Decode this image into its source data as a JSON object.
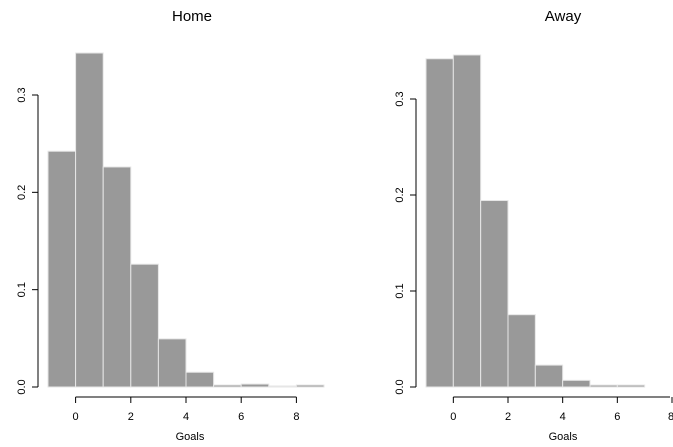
{
  "chart_data": [
    {
      "type": "bar",
      "title": "Home",
      "xlabel": "Goals",
      "ylabel": "",
      "x": [
        -1,
        0,
        1,
        2,
        3,
        4,
        5,
        6,
        7,
        8
      ],
      "values": [
        0.24,
        0.34,
        0.224,
        0.125,
        0.049,
        0.015,
        0.002,
        0.003,
        0.001,
        0.002
      ],
      "xlim": [
        -1,
        9
      ],
      "ylim": [
        0,
        0.34
      ],
      "xticks": [
        0,
        2,
        4,
        6,
        8
      ],
      "yticks": [
        0.0,
        0.1,
        0.2,
        0.3
      ],
      "xtick_labels": [
        "0",
        "2",
        "4",
        "6",
        "8"
      ],
      "ytick_labels": [
        "0.0",
        "0.1",
        "0.2",
        "0.3"
      ],
      "grid": false
    },
    {
      "type": "bar",
      "title": "Away",
      "xlabel": "Goals",
      "ylabel": "",
      "x": [
        -1,
        0,
        1,
        2,
        3,
        4,
        5,
        6
      ],
      "values": [
        0.345,
        0.349,
        0.196,
        0.076,
        0.023,
        0.007,
        0.002,
        0.002
      ],
      "xlim": [
        -1,
        8
      ],
      "ylim": [
        0,
        0.35
      ],
      "xticks": [
        0,
        2,
        4,
        6,
        8
      ],
      "yticks": [
        0.0,
        0.1,
        0.2,
        0.3
      ],
      "xtick_labels": [
        "0",
        "2",
        "4",
        "6",
        "8"
      ],
      "ytick_labels": [
        "0.0",
        "0.1",
        "0.2",
        "0.3"
      ],
      "grid": false
    }
  ]
}
